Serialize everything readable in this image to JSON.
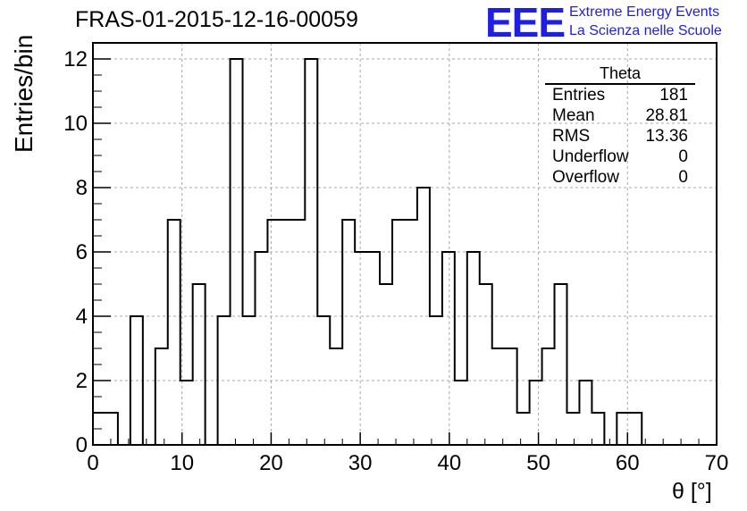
{
  "header": {
    "run_title": "FRAS-01-2015-12-16-00059"
  },
  "logo": {
    "mark": "EEE",
    "line1": "Extreme Energy Events",
    "line2": "La Scienza nelle Scuole",
    "color": "#1f1fe0"
  },
  "stats_box": {
    "title": "Theta",
    "rows": [
      {
        "label": "Entries",
        "value": "181"
      },
      {
        "label": "Mean",
        "value": "28.81"
      },
      {
        "label": "RMS",
        "value": "13.36"
      },
      {
        "label": "Underflow",
        "value": "0"
      },
      {
        "label": "Overflow",
        "value": "0"
      }
    ]
  },
  "chart_data": {
    "type": "bar",
    "style": "step-histogram",
    "xlabel": "θ [°]",
    "ylabel": "Entries/bin",
    "xlim": [
      0,
      70
    ],
    "ylim": [
      0,
      12.5
    ],
    "grid": true,
    "bin_width": 1.4,
    "x_ticks": [
      0,
      10,
      20,
      30,
      40,
      50,
      60,
      70
    ],
    "y_ticks": [
      0,
      2,
      4,
      6,
      8,
      10,
      12
    ],
    "values": [
      1,
      1,
      0,
      4,
      0,
      3,
      7,
      2,
      5,
      0,
      4,
      12,
      4,
      6,
      7,
      7,
      7,
      12,
      4,
      3,
      7,
      6,
      6,
      5,
      7,
      7,
      8,
      4,
      6,
      2,
      6,
      5,
      3,
      3,
      1,
      2,
      3,
      5,
      1,
      2,
      1,
      0,
      1,
      1,
      0,
      0,
      0,
      0,
      0,
      0
    ],
    "line_color": "#000000"
  }
}
